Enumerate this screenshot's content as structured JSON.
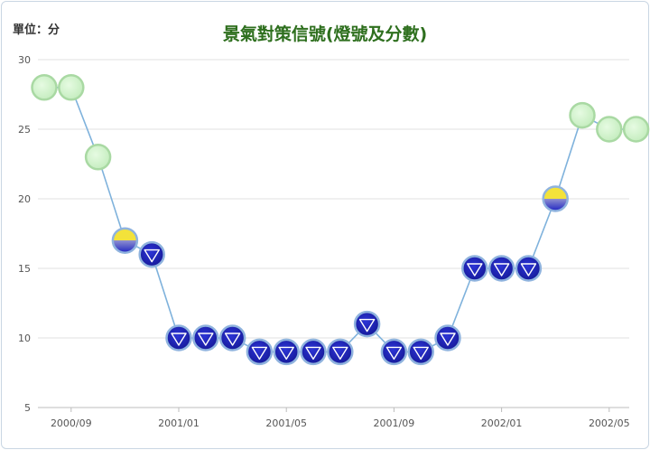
{
  "chart_data": {
    "type": "line",
    "title": "景氣對策信號(燈號及分數)",
    "unit_label": "單位：分",
    "ylim": [
      5,
      30
    ],
    "y_ticks": [
      "5",
      "10",
      "15",
      "20",
      "25",
      "30"
    ],
    "x_ticks": [
      "2000/09",
      "2001/01",
      "2001/05",
      "2001/09",
      "2002/01",
      "2002/05"
    ],
    "x_tick_index": [
      1,
      5,
      9,
      13,
      17,
      21
    ],
    "grid": true,
    "points": [
      {
        "month": "2000/08",
        "value": 28,
        "signal": "green"
      },
      {
        "month": "2000/09",
        "value": 28,
        "signal": "green"
      },
      {
        "month": "2000/10",
        "value": 23,
        "signal": "green"
      },
      {
        "month": "2000/11",
        "value": 17,
        "signal": "yellow-blue"
      },
      {
        "month": "2000/12",
        "value": 16,
        "signal": "blue"
      },
      {
        "month": "2001/01",
        "value": 10,
        "signal": "blue"
      },
      {
        "month": "2001/02",
        "value": 10,
        "signal": "blue"
      },
      {
        "month": "2001/03",
        "value": 10,
        "signal": "blue"
      },
      {
        "month": "2001/04",
        "value": 9,
        "signal": "blue"
      },
      {
        "month": "2001/05",
        "value": 9,
        "signal": "blue"
      },
      {
        "month": "2001/06",
        "value": 9,
        "signal": "blue"
      },
      {
        "month": "2001/07",
        "value": 9,
        "signal": "blue"
      },
      {
        "month": "2001/08",
        "value": 11,
        "signal": "blue"
      },
      {
        "month": "2001/09",
        "value": 9,
        "signal": "blue"
      },
      {
        "month": "2001/10",
        "value": 9,
        "signal": "blue"
      },
      {
        "month": "2001/11",
        "value": 10,
        "signal": "blue"
      },
      {
        "month": "2001/12",
        "value": 15,
        "signal": "blue"
      },
      {
        "month": "2002/01",
        "value": 15,
        "signal": "blue"
      },
      {
        "month": "2002/02",
        "value": 15,
        "signal": "blue"
      },
      {
        "month": "2002/03",
        "value": 20,
        "signal": "yellow-blue"
      },
      {
        "month": "2002/04",
        "value": 26,
        "signal": "green"
      },
      {
        "month": "2002/05",
        "value": 25,
        "signal": "green"
      },
      {
        "month": "2002/06",
        "value": 25,
        "signal": "green"
      }
    ],
    "colors": {
      "line": "#7fb2dc",
      "green_fill": "#d4f5cf",
      "green_stroke": "#a9d9a3",
      "blue_fill": "#1f25c2",
      "blue_stroke": "#8fb3de",
      "yellow": "#f3e23a"
    }
  }
}
